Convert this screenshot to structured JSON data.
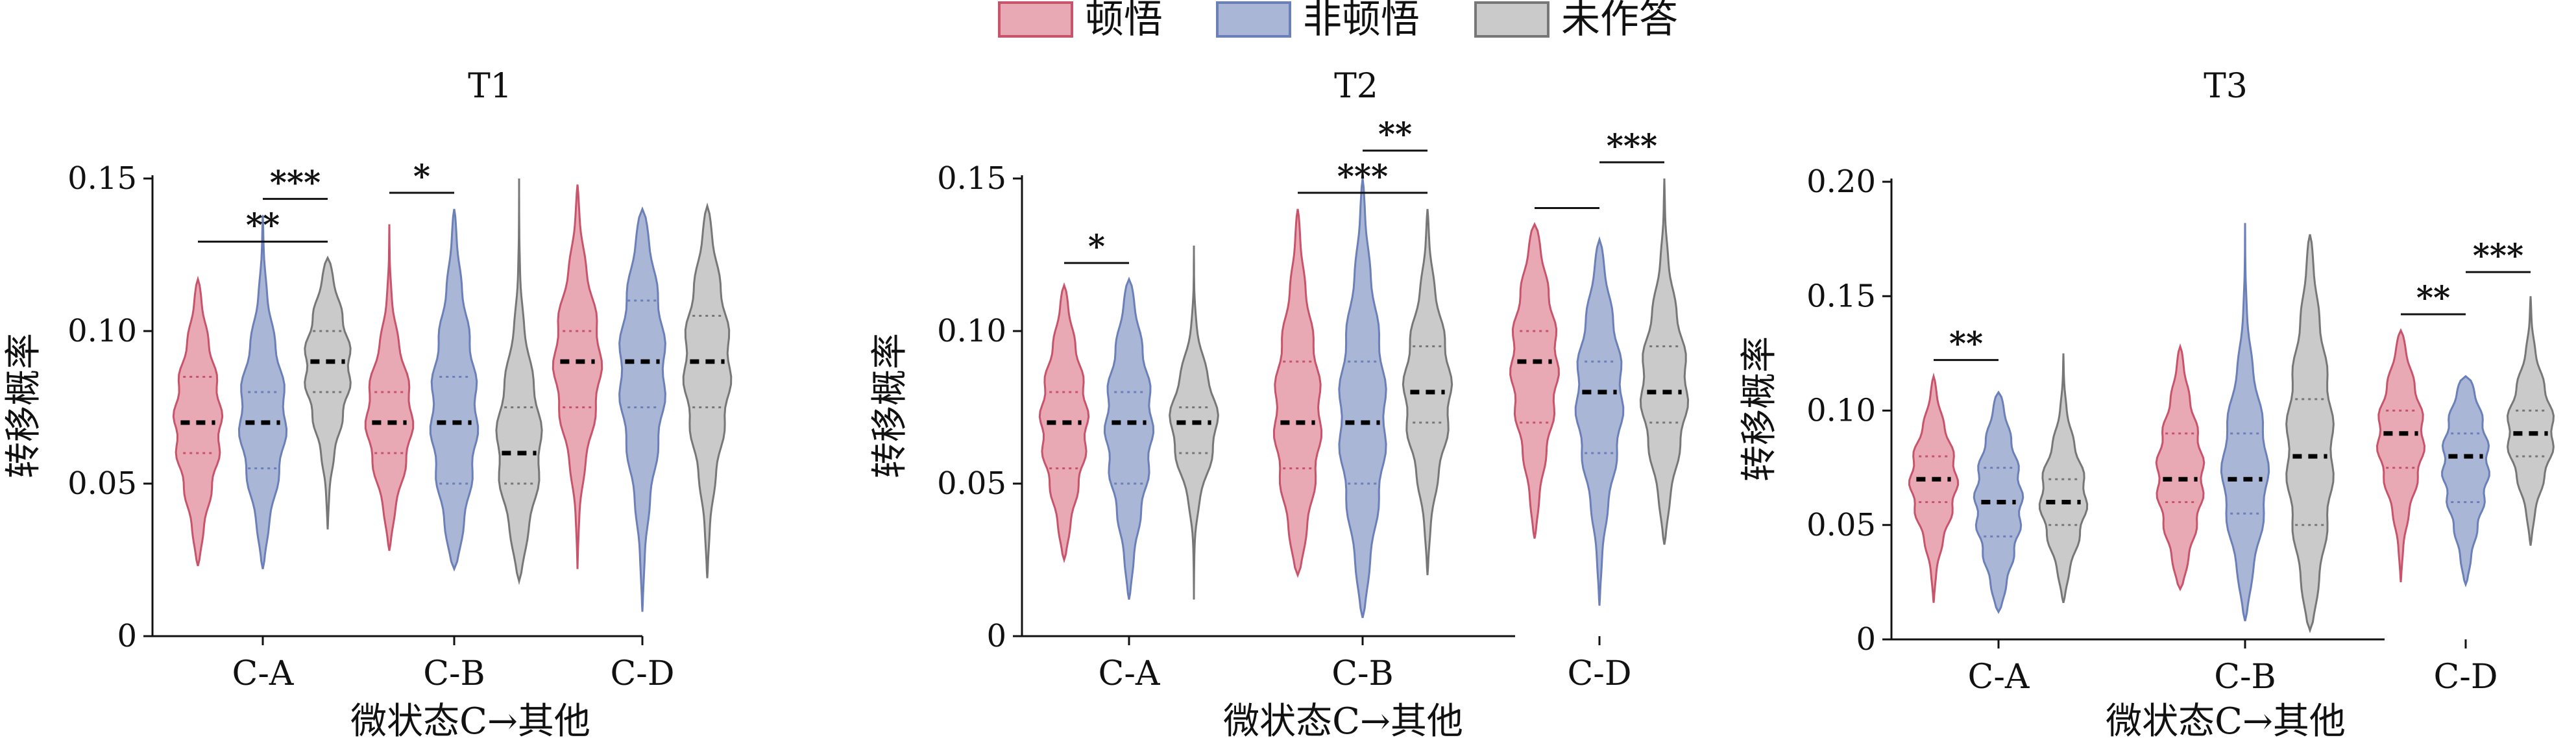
{
  "legend": [
    {
      "name": "顿悟",
      "fill": "#E8A8B4",
      "stroke": "#C8546B"
    },
    {
      "name": "非顿悟",
      "fill": "#A9B6D6",
      "stroke": "#6B7FB8"
    },
    {
      "name": "未作答",
      "fill": "#CACACA",
      "stroke": "#777777"
    }
  ],
  "chart_data": [
    {
      "type": "violin",
      "title": "T1",
      "xlabel": "微状态C→其他",
      "ylabel": "转移概率",
      "ylim": [
        0,
        0.15
      ],
      "yticks": [
        "0",
        "0.05",
        "0.10",
        "0.15"
      ],
      "yticks_values": [
        0,
        0.05,
        0.1,
        0.15
      ],
      "categories": [
        "C-A",
        "C-B",
        "C-D"
      ],
      "series": [
        "顿悟",
        "非顿悟",
        "未作答"
      ],
      "violins": [
        {
          "category": "C-A",
          "series": "顿悟",
          "min": 0.023,
          "max": 0.117,
          "q1": 0.06,
          "median": 0.07,
          "q3": 0.085
        },
        {
          "category": "C-A",
          "series": "非顿悟",
          "min": 0.022,
          "max": 0.138,
          "q1": 0.055,
          "median": 0.07,
          "q3": 0.08
        },
        {
          "category": "C-A",
          "series": "未作答",
          "min": 0.035,
          "max": 0.124,
          "q1": 0.08,
          "median": 0.09,
          "q3": 0.1
        },
        {
          "category": "C-B",
          "series": "顿悟",
          "min": 0.028,
          "max": 0.135,
          "q1": 0.06,
          "median": 0.07,
          "q3": 0.08
        },
        {
          "category": "C-B",
          "series": "非顿悟",
          "min": 0.022,
          "max": 0.14,
          "q1": 0.05,
          "median": 0.07,
          "q3": 0.085
        },
        {
          "category": "C-B",
          "series": "未作答",
          "min": 0.018,
          "max": 0.15,
          "q1": 0.05,
          "median": 0.06,
          "q3": 0.075
        },
        {
          "category": "C-D",
          "series": "顿悟",
          "min": 0.022,
          "max": 0.148,
          "q1": 0.075,
          "median": 0.09,
          "q3": 0.1
        },
        {
          "category": "C-D",
          "series": "非顿悟",
          "min": 0.008,
          "max": 0.14,
          "q1": 0.075,
          "median": 0.09,
          "q3": 0.11
        },
        {
          "category": "C-D",
          "series": "未作答",
          "min": 0.019,
          "max": 0.141,
          "q1": 0.075,
          "median": 0.09,
          "q3": 0.105
        }
      ],
      "significance": [
        {
          "from": "C-A:顿悟",
          "to": "C-A:未作答",
          "label": "**"
        },
        {
          "from": "C-A:非顿悟",
          "to": "C-A:未作答",
          "label": "***"
        },
        {
          "from": "C-B:顿悟",
          "to": "C-B:非顿悟",
          "label": "*"
        }
      ]
    },
    {
      "type": "violin",
      "title": "T2",
      "xlabel": "微状态C→其他",
      "ylabel": "转移概率",
      "ylim": [
        0,
        0.15
      ],
      "yticks": [
        "0",
        "0.05",
        "0.10",
        "0.15"
      ],
      "yticks_values": [
        0,
        0.05,
        0.1,
        0.15
      ],
      "categories": [
        "C-A",
        "C-B",
        "C-D"
      ],
      "series": [
        "顿悟",
        "非顿悟",
        "未作答"
      ],
      "violins": [
        {
          "category": "C-A",
          "series": "顿悟",
          "min": 0.025,
          "max": 0.115,
          "q1": 0.055,
          "median": 0.07,
          "q3": 0.08
        },
        {
          "category": "C-A",
          "series": "非顿悟",
          "min": 0.012,
          "max": 0.117,
          "q1": 0.05,
          "median": 0.07,
          "q3": 0.08
        },
        {
          "category": "C-A",
          "series": "未作答",
          "min": 0.012,
          "max": 0.128,
          "q1": 0.06,
          "median": 0.07,
          "q3": 0.075
        },
        {
          "category": "C-B",
          "series": "顿悟",
          "min": 0.02,
          "max": 0.14,
          "q1": 0.055,
          "median": 0.07,
          "q3": 0.09
        },
        {
          "category": "C-B",
          "series": "非顿悟",
          "min": 0.006,
          "max": 0.15,
          "q1": 0.05,
          "median": 0.07,
          "q3": 0.09
        },
        {
          "category": "C-B",
          "series": "未作答",
          "min": 0.02,
          "max": 0.14,
          "q1": 0.07,
          "median": 0.08,
          "q3": 0.095
        },
        {
          "category": "C-D",
          "series": "顿悟",
          "min": 0.032,
          "max": 0.135,
          "q1": 0.07,
          "median": 0.09,
          "q3": 0.1
        },
        {
          "category": "C-D",
          "series": "非顿悟",
          "min": 0.01,
          "max": 0.13,
          "q1": 0.06,
          "median": 0.08,
          "q3": 0.09
        },
        {
          "category": "C-D",
          "series": "未作答",
          "min": 0.03,
          "max": 0.15,
          "q1": 0.07,
          "median": 0.08,
          "q3": 0.095
        }
      ],
      "significance": [
        {
          "from": "C-A:顿悟",
          "to": "C-A:非顿悟",
          "label": "*"
        },
        {
          "from": "C-B:顿悟",
          "to": "C-B:未作答",
          "label": "***"
        },
        {
          "from": "C-B:非顿悟",
          "to": "C-B:未作答",
          "label": "**"
        },
        {
          "from": "C-D:顿悟",
          "to": "C-D:非顿悟",
          "label": ""
        },
        {
          "from": "C-D:非顿悟",
          "to": "C-D:未作答",
          "label": "***"
        }
      ]
    },
    {
      "type": "violin",
      "title": "T3",
      "xlabel": "微状态C→其他",
      "ylabel": "转移概率",
      "ylim": [
        0,
        0.2
      ],
      "yticks": [
        "0",
        "0.05",
        "0.10",
        "0.15",
        "0.20"
      ],
      "yticks_values": [
        0,
        0.05,
        0.1,
        0.15,
        0.2
      ],
      "categories": [
        "C-A",
        "C-B",
        "C-D"
      ],
      "series": [
        "顿悟",
        "非顿悟",
        "未作答"
      ],
      "violins": [
        {
          "category": "C-A",
          "series": "顿悟",
          "min": 0.016,
          "max": 0.115,
          "q1": 0.06,
          "median": 0.07,
          "q3": 0.08
        },
        {
          "category": "C-A",
          "series": "非顿悟",
          "min": 0.012,
          "max": 0.108,
          "q1": 0.045,
          "median": 0.06,
          "q3": 0.075
        },
        {
          "category": "C-A",
          "series": "未作答",
          "min": 0.016,
          "max": 0.125,
          "q1": 0.05,
          "median": 0.06,
          "q3": 0.07
        },
        {
          "category": "C-B",
          "series": "顿悟",
          "min": 0.022,
          "max": 0.128,
          "q1": 0.06,
          "median": 0.07,
          "q3": 0.09
        },
        {
          "category": "C-B",
          "series": "非顿悟",
          "min": 0.008,
          "max": 0.182,
          "q1": 0.055,
          "median": 0.07,
          "q3": 0.09
        },
        {
          "category": "C-B",
          "series": "未作答",
          "min": 0.004,
          "max": 0.177,
          "q1": 0.05,
          "median": 0.08,
          "q3": 0.105
        },
        {
          "category": "C-D",
          "series": "顿悟",
          "min": 0.025,
          "max": 0.135,
          "q1": 0.075,
          "median": 0.09,
          "q3": 0.1
        },
        {
          "category": "C-D",
          "series": "非顿悟",
          "min": 0.024,
          "max": 0.115,
          "q1": 0.06,
          "median": 0.08,
          "q3": 0.09
        },
        {
          "category": "C-D",
          "series": "未作答",
          "min": 0.041,
          "max": 0.15,
          "q1": 0.08,
          "median": 0.09,
          "q3": 0.1
        }
      ],
      "significance": [
        {
          "from": "C-A:顿悟",
          "to": "C-A:非顿悟",
          "label": "**"
        },
        {
          "from": "C-D:顿悟",
          "to": "C-D:非顿悟",
          "label": "**"
        },
        {
          "from": "C-D:非顿悟",
          "to": "C-D:未作答",
          "label": "***"
        }
      ]
    }
  ]
}
